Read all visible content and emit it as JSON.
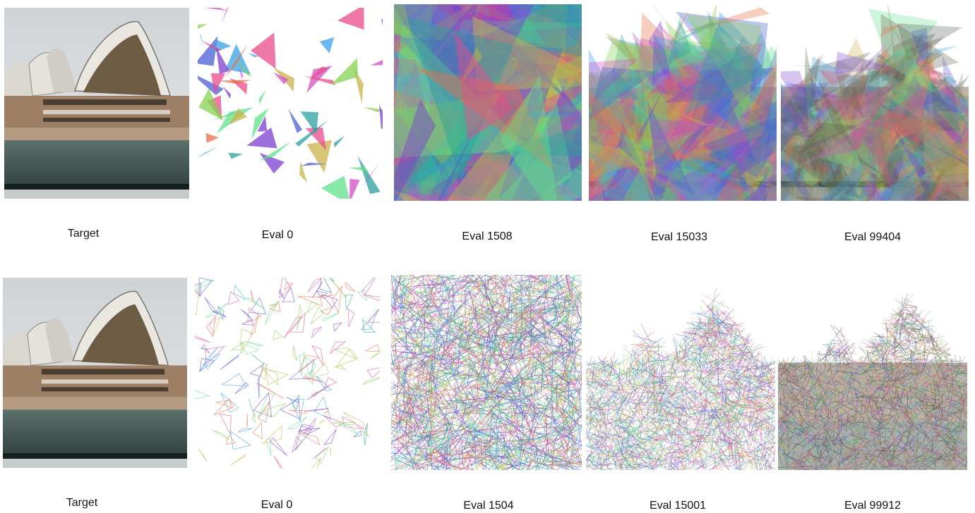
{
  "rows": [
    {
      "panels": [
        {
          "caption": "Target",
          "kind": "photo"
        },
        {
          "caption": "Eval 0",
          "kind": "sparse-triangles"
        },
        {
          "caption": "Eval 1508",
          "kind": "dense-triangles"
        },
        {
          "caption": "Eval 15033",
          "kind": "converging-triangles"
        },
        {
          "caption": "Eval 99404",
          "kind": "near-target"
        }
      ]
    },
    {
      "panels": [
        {
          "caption": "Target",
          "kind": "photo"
        },
        {
          "caption": "Eval 0",
          "kind": "sparse-lines"
        },
        {
          "caption": "Eval 1504",
          "kind": "dense-lines"
        },
        {
          "caption": "Eval 15001",
          "kind": "converging-lines"
        },
        {
          "caption": "Eval 99912",
          "kind": "near-target-lines"
        }
      ]
    }
  ],
  "palette": [
    "#7b3fd1",
    "#3aa0e8",
    "#5fe08a",
    "#e86f4b",
    "#2a9fa0",
    "#d24fc4",
    "#c9b34a",
    "#4b5fd1",
    "#86d14f",
    "#e84b8a"
  ]
}
